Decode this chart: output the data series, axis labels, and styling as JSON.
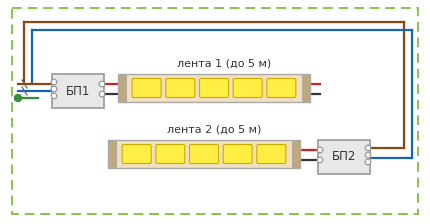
{
  "bg_color": "#ffffff",
  "border_color": "#8bc34a",
  "wire_brown": "#8B4513",
  "wire_blue": "#1565C0",
  "wire_red": "#cc2222",
  "wire_black": "#333333",
  "wire_green": "#388e3c",
  "psu_fill": "#e8e8e8",
  "psu_stroke": "#999999",
  "strip_fill": "#f0e0c0",
  "strip_stroke": "#aaaaaa",
  "strip_end_fill": "#c0a878",
  "led_fill": "#ffee44",
  "led_stroke": "#ccaa00",
  "text_color": "#333333",
  "label1": "лента 1 (до 5 м)",
  "label2": "лента 2 (до 5 м)",
  "psu1_label": "БП1",
  "psu2_label": "БП2",
  "figsize": [
    4.3,
    2.24
  ],
  "dpi": 100,
  "n_leds": 5,
  "lw_wire": 1.6,
  "lw_border": 1.4
}
